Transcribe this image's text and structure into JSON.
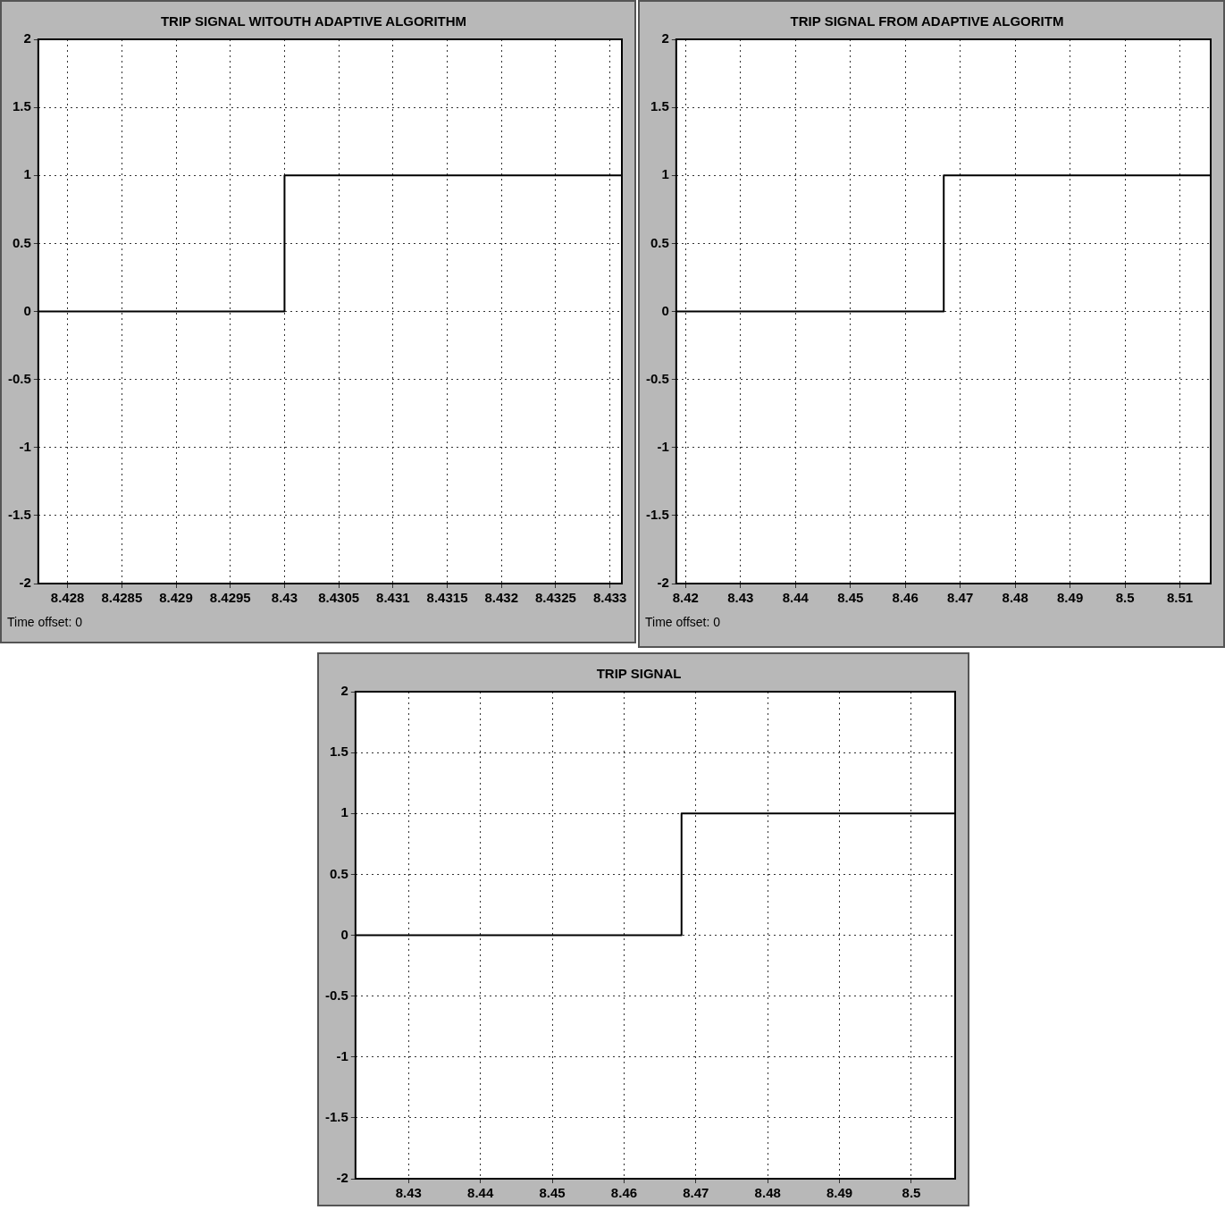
{
  "chart_data": [
    {
      "type": "step",
      "title": "TRIP SIGNAL WITOUTH ADAPTIVE ALGORITHM",
      "x": [
        8.42773,
        8.43,
        8.43311
      ],
      "values": [
        0,
        1,
        1
      ],
      "color": "#000000",
      "xlim": [
        8.42773,
        8.43311
      ],
      "xticks": [
        8.428,
        8.4285,
        8.429,
        8.4295,
        8.43,
        8.4305,
        8.431,
        8.4315,
        8.432,
        8.4325,
        8.433
      ],
      "ylim": [
        -2,
        2
      ],
      "yticks": [
        -2,
        -1.5,
        -1,
        -0.5,
        0,
        0.5,
        1,
        1.5,
        2
      ],
      "grid": true,
      "annotations": [
        "Time offset:  0"
      ]
    },
    {
      "type": "step",
      "title": "TRIP SIGNAL FROM ADAPTIVE ALGORITM",
      "x": [
        8.4183,
        8.467,
        8.5156
      ],
      "values": [
        0,
        1,
        1
      ],
      "color": "#000000",
      "xlim": [
        8.4183,
        8.5156
      ],
      "xticks": [
        8.42,
        8.43,
        8.44,
        8.45,
        8.46,
        8.47,
        8.48,
        8.49,
        8.5,
        8.51
      ],
      "ylim": [
        -2,
        2
      ],
      "yticks": [
        -2,
        -1.5,
        -1,
        -0.5,
        0,
        0.5,
        1,
        1.5,
        2
      ],
      "grid": true,
      "annotations": [
        "Time offset:  0"
      ]
    },
    {
      "type": "step",
      "title": "TRIP SIGNAL",
      "x": [
        8.4226,
        8.468,
        8.5061
      ],
      "values": [
        0,
        1,
        1
      ],
      "color": "#000000",
      "xlim": [
        8.4226,
        8.5061
      ],
      "xticks": [
        8.43,
        8.44,
        8.45,
        8.46,
        8.47,
        8.48,
        8.49,
        8.5
      ],
      "ylim": [
        -2,
        2
      ],
      "yticks": [
        -2,
        -1.5,
        -1,
        -0.5,
        0,
        0.5,
        1,
        1.5,
        2
      ],
      "grid": true
    }
  ]
}
